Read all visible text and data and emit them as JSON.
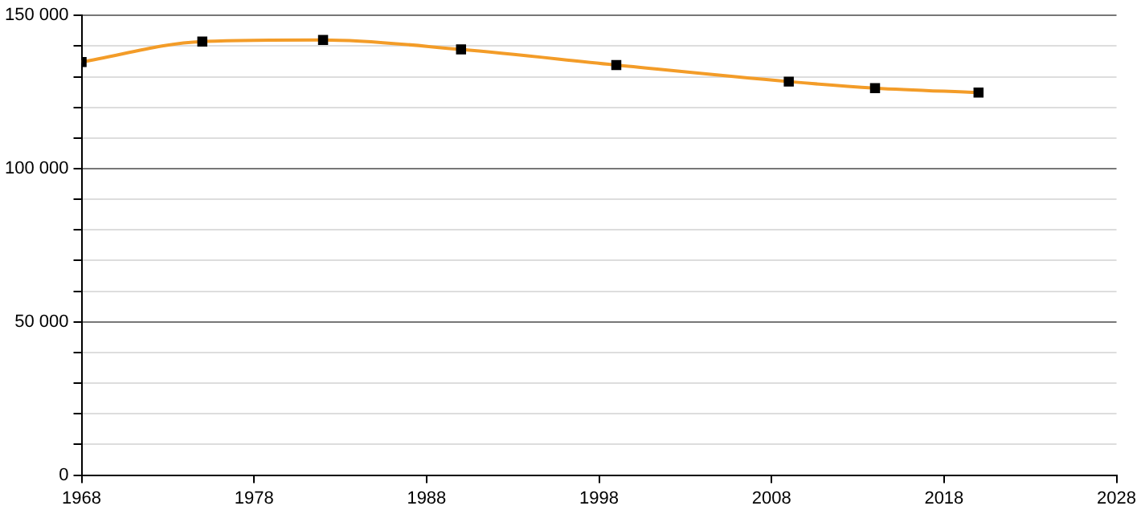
{
  "chart_data": {
    "type": "line",
    "x": [
      1968,
      1975,
      1982,
      1990,
      1999,
      2009,
      2014,
      2020
    ],
    "series": [
      {
        "color": "#f39c28",
        "values": [
          134800,
          141500,
          142000,
          138900,
          133800,
          128400,
          126300,
          124800
        ]
      }
    ],
    "xlim": [
      1968,
      2028
    ],
    "xticks": [
      1968,
      1978,
      1988,
      1998,
      2008,
      2018,
      2028
    ],
    "ylim": [
      0,
      150000
    ],
    "yticks": [
      {
        "value": 0,
        "label": "0"
      },
      {
        "value": 10000,
        "label": null
      },
      {
        "value": 20000,
        "label": null
      },
      {
        "value": 30000,
        "label": null
      },
      {
        "value": 40000,
        "label": null
      },
      {
        "value": 50000,
        "label": "50 000"
      },
      {
        "value": 60000,
        "label": null
      },
      {
        "value": 70000,
        "label": null
      },
      {
        "value": 80000,
        "label": null
      },
      {
        "value": 90000,
        "label": null
      },
      {
        "value": 100000,
        "label": "100 000"
      },
      {
        "value": 110000,
        "label": null
      },
      {
        "value": 120000,
        "label": null
      },
      {
        "value": 130000,
        "label": null
      },
      {
        "value": 140000,
        "label": null
      },
      {
        "value": 150000,
        "label": "150 000"
      }
    ],
    "grid": "y",
    "marker": "square",
    "line_style": "solid",
    "legend": false
  }
}
